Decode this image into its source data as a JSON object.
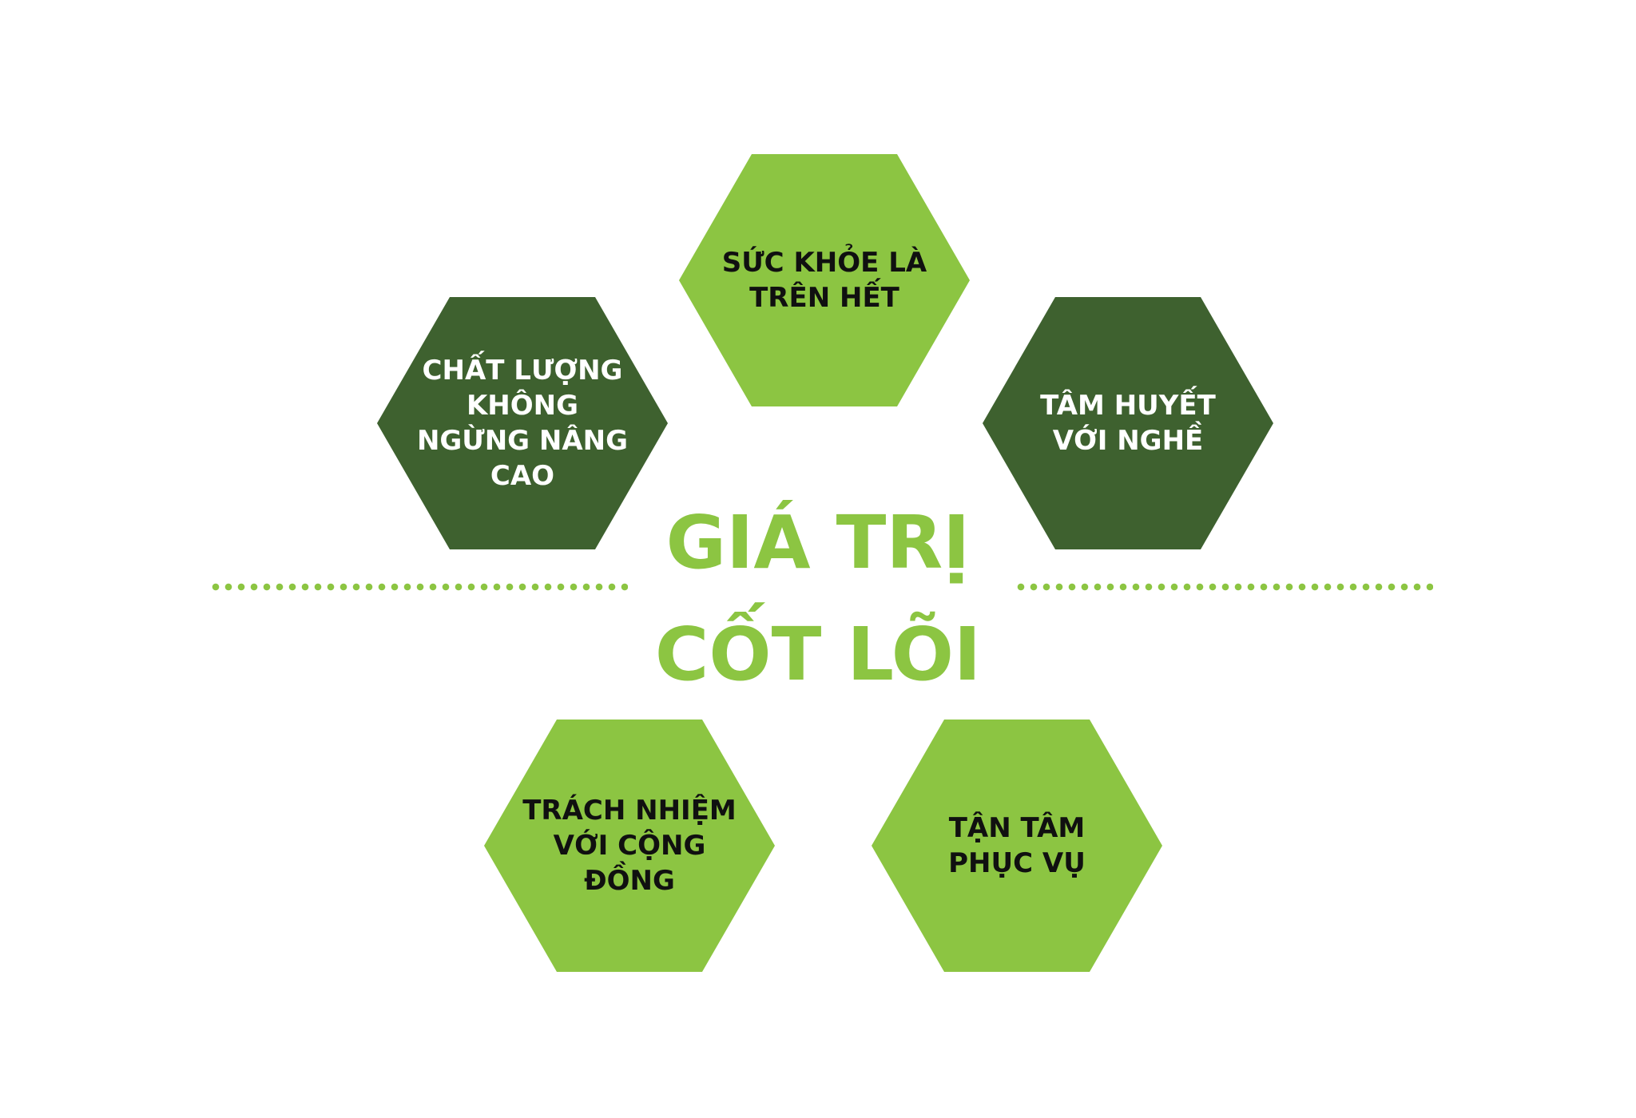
{
  "title": {
    "line1": "GIÁ TRỊ",
    "line2": "CỐT LÕI"
  },
  "values": {
    "top": "SỨC KHỎE LÀ\nTRÊN HẾT",
    "left": "CHẤT LƯỢNG\nKHÔNG\nNGỪNG NÂNG\nCAO",
    "right": "TÂM HUYẾT\nVỚI NGHỀ",
    "bottom_left": "TRÁCH NHIỆM\nVỚI CỘNG\nĐỒNG",
    "bottom_right": "TẬN TÂM\nPHỤC VỤ"
  },
  "colors": {
    "light_green": "#8cc542",
    "dark_green": "#3e612f",
    "text_dark": "#101010",
    "text_light": "#ffffff"
  }
}
